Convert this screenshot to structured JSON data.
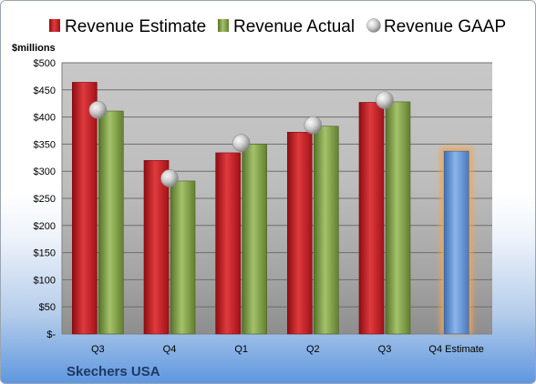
{
  "chart_data": {
    "type": "bar",
    "title": "",
    "company": "Skechers USA",
    "ylabel": "$millions",
    "ylim": [
      0,
      500
    ],
    "yticks": [
      0,
      50,
      100,
      150,
      200,
      250,
      300,
      350,
      400,
      450,
      500
    ],
    "ytick_labels": [
      "$-",
      "$50",
      "$100",
      "$150",
      "$200",
      "$250",
      "$300",
      "$350",
      "$400",
      "$450",
      "$500"
    ],
    "categories": [
      "Q3",
      "Q4",
      "Q1",
      "Q2",
      "Q3",
      "Q4 Estimate"
    ],
    "grid": true,
    "legend_position": "top",
    "series": [
      {
        "name": "Revenue Estimate",
        "type": "bar",
        "color": "#c0161c",
        "values": [
          464,
          320,
          334,
          372,
          427,
          null
        ]
      },
      {
        "name": "Revenue Actual",
        "type": "bar",
        "color": "#7a9a3c",
        "values": [
          411,
          282,
          350,
          383,
          428,
          null
        ]
      },
      {
        "name": "Revenue GAAP",
        "type": "marker",
        "color": "#a6a6a6",
        "values": [
          413,
          287,
          352,
          385,
          431,
          null
        ]
      },
      {
        "name": "Q4 Estimate",
        "type": "bar",
        "color": "#5b8fd6",
        "highlight": "#f6a54b",
        "values": [
          null,
          null,
          null,
          null,
          null,
          337
        ]
      }
    ]
  }
}
